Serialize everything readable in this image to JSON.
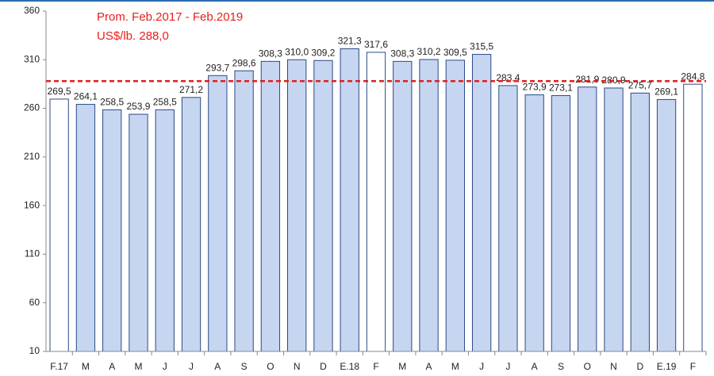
{
  "chart_data": {
    "type": "bar",
    "annotation": "Prom. Feb.2017 - Feb.2019",
    "reference_line": {
      "value": 288,
      "label": "US$/lb. 288,0",
      "color": "#e02020"
    },
    "categories": [
      "F.17",
      "M",
      "A",
      "M",
      "J",
      "J",
      "A",
      "S",
      "O",
      "N",
      "D",
      "E.18",
      "F",
      "M",
      "A",
      "M",
      "J",
      "J",
      "A",
      "S",
      "O",
      "N",
      "D",
      "E.19",
      "F"
    ],
    "values": [
      269.5,
      264.1,
      258.5,
      253.9,
      258.5,
      271.2,
      293.7,
      298.6,
      308.3,
      310.0,
      309.2,
      321.3,
      317.6,
      308.3,
      310.2,
      309.5,
      315.5,
      283.4,
      273.9,
      273.1,
      281.9,
      280.9,
      275.7,
      269.1,
      284.8
    ],
    "value_labels": [
      "269,5",
      "264,1",
      "258,5",
      "253,9",
      "258,5",
      "271,2",
      "293,7",
      "298,6",
      "308,3",
      "310,0",
      "309,2",
      "321,3",
      "317,6",
      "308,3",
      "310,2",
      "309,5",
      "315,5",
      "283,4",
      "273,9",
      "273,1",
      "281,9",
      "280,9",
      "275,7",
      "269,1",
      "284,8"
    ],
    "colors": [
      "#ffffff",
      "#c6d6f0",
      "#c6d6f0",
      "#c6d6f0",
      "#c6d6f0",
      "#c6d6f0",
      "#c6d6f0",
      "#c6d6f0",
      "#c6d6f0",
      "#c6d6f0",
      "#c6d6f0",
      "#c6d6f0",
      "#ffffff",
      "#c6d6f0",
      "#c6d6f0",
      "#c6d6f0",
      "#c6d6f0",
      "#c6d6f0",
      "#c6d6f0",
      "#c6d6f0",
      "#c6d6f0",
      "#c6d6f0",
      "#c6d6f0",
      "#c6d6f0",
      "#ffffff"
    ],
    "border_color": "#2c4a86",
    "ylim": [
      10,
      360
    ],
    "yticks": [
      10,
      60,
      110,
      160,
      210,
      260,
      310,
      360
    ],
    "grid": false
  }
}
